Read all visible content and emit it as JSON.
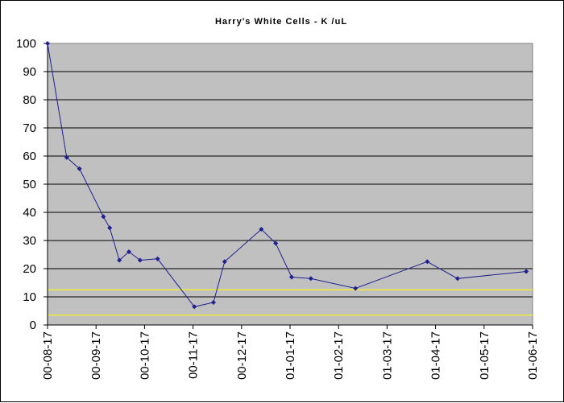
{
  "chart_data": {
    "type": "line",
    "title": "Harry's White Cells - K /uL",
    "xlabel": "",
    "ylabel": "",
    "x_tick_labels": [
      "00-08-17",
      "00-09-17",
      "00-10-17",
      "00-11-17",
      "00-12-17",
      "01-01-17",
      "01-02-17",
      "01-03-17",
      "01-04-17",
      "01-05-17",
      "01-06-17"
    ],
    "xlim": [
      "2000-08-17",
      "2001-06-17"
    ],
    "ylim": [
      0,
      100
    ],
    "y_ticks": [
      0,
      10,
      20,
      30,
      40,
      50,
      60,
      70,
      80,
      90,
      100
    ],
    "grid": "horizontal",
    "series": [
      {
        "color": "#1f1f8f",
        "x": [
          "2000-08-17",
          "2000-08-29",
          "2000-09-06",
          "2000-09-21",
          "2000-09-25",
          "2000-10-01",
          "2000-10-07",
          "2000-10-14",
          "2000-10-25",
          "2000-11-17",
          "2000-11-29",
          "2000-12-06",
          "2000-12-29",
          "2001-01-07",
          "2001-01-17",
          "2001-01-29",
          "2001-02-26",
          "2001-04-12",
          "2001-05-01",
          "2001-06-13"
        ],
        "values": [
          100,
          59.5,
          55.5,
          38.5,
          34.5,
          23,
          26,
          23,
          23.5,
          6.5,
          8,
          22.5,
          34,
          29,
          17,
          16.5,
          13,
          22.5,
          16.5,
          19
        ]
      }
    ],
    "reference_lines": [
      {
        "value": 12.5,
        "color": "#ffff00"
      },
      {
        "value": 3.5,
        "color": "#ffff00"
      }
    ]
  }
}
